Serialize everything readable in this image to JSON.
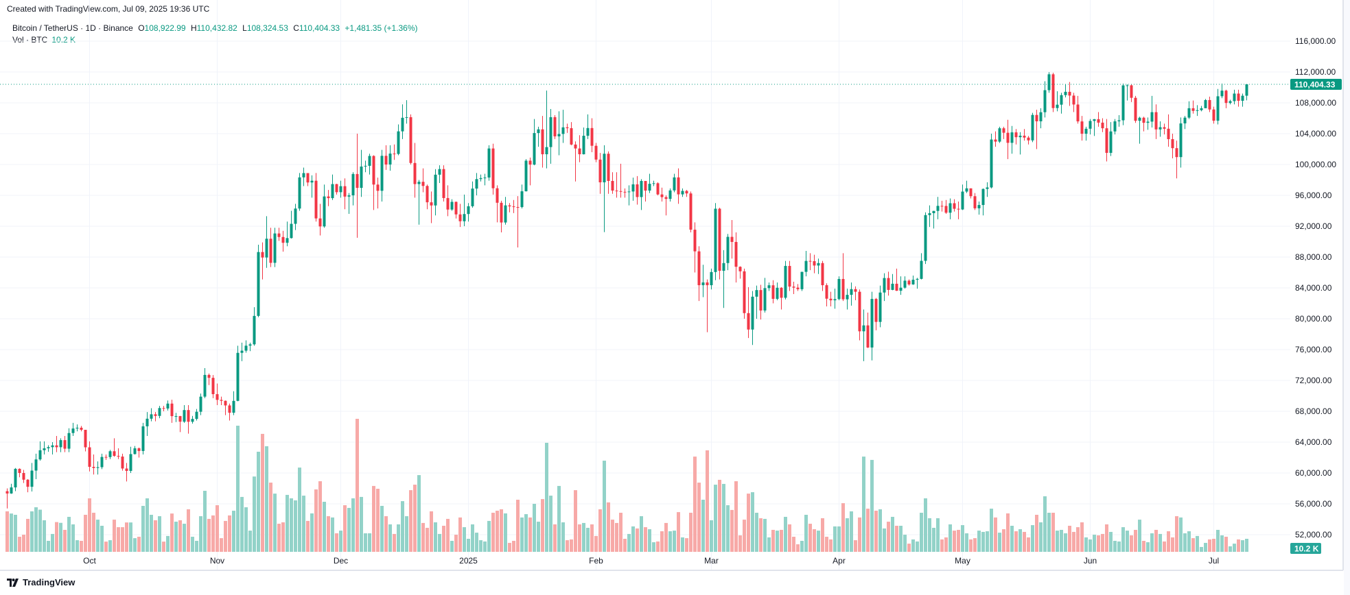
{
  "header": {
    "created_text": "Created with TradingView.com, Jul 09, 2025 19:36 UTC",
    "symbol": "Bitcoin / TetherUS · 1D · Binance",
    "o_label": "O",
    "o_value": "108,922.99",
    "h_label": "H",
    "h_value": "110,432.82",
    "l_label": "L",
    "l_value": "108,324.53",
    "c_label": "C",
    "c_value": "110,404.33",
    "change": "+1,481.35 (+1.36%)",
    "vol_label": "Vol · BTC",
    "vol_value": "10.2 K"
  },
  "badges": {
    "price": "110,404.33",
    "volume": "10.2 K"
  },
  "footer": {
    "brand": "TradingView"
  },
  "colors": {
    "up": "#089981",
    "down": "#F23645",
    "vol_up": "#92d2c8",
    "vol_down": "#f7a9a7",
    "grid": "#f0f3fa",
    "badge_vol": "#26a69a"
  },
  "chart_data": {
    "type": "candlestick",
    "symbol": "BTCUSDT",
    "interval": "1D",
    "first_date": "2024-09-11",
    "first_open": 57640,
    "last_price": 110404.33,
    "ylim": [
      50000,
      118000
    ],
    "y_ticks": [
      "116,000.00",
      "112,000.00",
      "108,000.00",
      "104,000.00",
      "100,000.00",
      "96,000.00",
      "92,000.00",
      "88,000.00",
      "84,000.00",
      "80,000.00",
      "76,000.00",
      "72,000.00",
      "68,000.00",
      "64,000.00",
      "60,000.00",
      "56,000.00",
      "52,000.00"
    ],
    "x_ticks": [
      {
        "label": "Oct",
        "date": "2024-10-01"
      },
      {
        "label": "Nov",
        "date": "2024-11-01"
      },
      {
        "label": "Dec",
        "date": "2024-12-01"
      },
      {
        "label": "2025",
        "date": "2025-01-01"
      },
      {
        "label": "Feb",
        "date": "2025-02-01"
      },
      {
        "label": "Mar",
        "date": "2025-03-01"
      },
      {
        "label": "Apr",
        "date": "2025-04-01"
      },
      {
        "label": "May",
        "date": "2025-05-01"
      },
      {
        "label": "Jun",
        "date": "2025-06-01"
      },
      {
        "label": "Jul",
        "date": "2025-07-01"
      }
    ],
    "grid": true,
    "close": [
      57340,
      58130,
      60540,
      60000,
      59130,
      58210,
      60310,
      61760,
      62950,
      63200,
      63350,
      63580,
      63340,
      64260,
      63150,
      65180,
      65770,
      65870,
      65600,
      63330,
      60800,
      60650,
      60750,
      62080,
      62060,
      62820,
      62220,
      62130,
      60580,
      60270,
      62450,
      63200,
      62850,
      66050,
      67040,
      67610,
      67400,
      68420,
      68360,
      69000,
      67370,
      67380,
      66650,
      68160,
      66640,
      67010,
      67940,
      69900,
      72720,
      72340,
      70220,
      69480,
      69360,
      68760,
      67810,
      69350,
      75580,
      75860,
      76510,
      76680,
      80370,
      88650,
      87940,
      90380,
      87250,
      91060,
      90600,
      89850,
      90460,
      92310,
      94290,
      98330,
      98890,
      97670,
      97900,
      93010,
      91970,
      95860,
      95640,
      97460,
      96410,
      97190,
      95840,
      96000,
      98770,
      96970,
      99740,
      99830,
      101110,
      97400,
      96590,
      101130,
      100000,
      101420,
      101370,
      104300,
      106060,
      106140,
      100200,
      97460,
      97760,
      97220,
      95100,
      94690,
      98680,
      99410,
      95650,
      94160,
      95160,
      93530,
      92640,
      93580,
      94590,
      96880,
      98110,
      98240,
      98310,
      102080,
      96920,
      95040,
      92480,
      94700,
      94570,
      94490,
      94480,
      96530,
      100500,
      99990,
      104080,
      104560,
      101330,
      102260,
      106140,
      103650,
      103960,
      104820,
      104710,
      102590,
      102080,
      101330,
      103730,
      104730,
      102430,
      100640,
      97690,
      101400,
      97870,
      96620,
      96550,
      96460,
      96450,
      96500,
      97430,
      95780,
      97870,
      96620,
      97500,
      97570,
      96120,
      95770,
      95540,
      96640,
      98330,
      96130,
      96580,
      96250,
      91550,
      88740,
      84350,
      84710,
      84350,
      86060,
      94270,
      86220,
      87220,
      90620,
      89960,
      86740,
      86150,
      80730,
      78600,
      82860,
      83720,
      81070,
      83970,
      84340,
      82580,
      84020,
      82720,
      86850,
      84170,
      84040,
      83830,
      86080,
      87500,
      87470,
      86900,
      87220,
      84350,
      82600,
      82390,
      82550,
      85160,
      82520,
      83100,
      83840,
      83500,
      78370,
      79140,
      76270,
      82570,
      79590,
      83400,
      85280,
      83740,
      84540,
      83630,
      84030,
      84940,
      84450,
      85060,
      85170,
      87510,
      93440,
      93690,
      93980,
      94640,
      94630,
      93750,
      94980,
      94260,
      94170,
      96490,
      96910,
      95890,
      94320,
      94750,
      96830,
      97030,
      103240,
      102970,
      104700,
      104120,
      102810,
      104170,
      103540,
      103740,
      103490,
      103130,
      106430,
      105600,
      106780,
      109640,
      111700,
      107320,
      107760,
      109000,
      109430,
      108940,
      107780,
      105590,
      103990,
      104640,
      105650,
      105880,
      105430,
      104700,
      101510,
      104290,
      105600,
      105730,
      110260,
      110270,
      108650,
      105670,
      106070,
      105410,
      105560,
      106790,
      104550,
      104840,
      104640,
      103290,
      102120,
      100960,
      105330,
      106080,
      107300,
      106950,
      107050,
      107300,
      108360,
      107140,
      105680,
      108850,
      109580,
      107980,
      108220,
      109200,
      108260,
      108922.99,
      110404.33
    ],
    "high": [
      58000,
      58600,
      60650,
      60600,
      60400,
      59200,
      61300,
      62500,
      64100,
      64100,
      63600,
      64000,
      64800,
      64500,
      64800,
      65800,
      66500,
      66300,
      66100,
      65600,
      64100,
      62400,
      61500,
      62500,
      62400,
      63000,
      64500,
      63200,
      62500,
      61300,
      63400,
      63500,
      63300,
      66500,
      67900,
      68400,
      67900,
      68700,
      68700,
      69400,
      69500,
      67800,
      67400,
      68800,
      68800,
      67400,
      68300,
      70300,
      73600,
      72900,
      72700,
      71600,
      69900,
      69400,
      69000,
      70600,
      76500,
      76900,
      77200,
      76900,
      81500,
      89600,
      89900,
      93300,
      91800,
      91800,
      91800,
      91400,
      92600,
      94000,
      94900,
      98900,
      99600,
      98800,
      98600,
      98900,
      94900,
      97400,
      96700,
      98700,
      97500,
      97900,
      98200,
      96300,
      99000,
      104000,
      101900,
      100500,
      101400,
      101200,
      98300,
      101900,
      102500,
      102500,
      102600,
      105200,
      107800,
      108350,
      106500,
      102800,
      98000,
      99500,
      97400,
      96500,
      99400,
      99900,
      99900,
      97300,
      95500,
      95200,
      94900,
      96100,
      95000,
      97800,
      98900,
      98700,
      98800,
      102500,
      102700,
      97300,
      95300,
      95800,
      95000,
      95400,
      95900,
      97400,
      100700,
      100900,
      105900,
      104900,
      106300,
      109590,
      107200,
      106400,
      106900,
      107100,
      105300,
      105500,
      103000,
      103800,
      104800,
      106500,
      106000,
      102800,
      101500,
      102500,
      101700,
      99000,
      99000,
      100100,
      96900,
      97300,
      98300,
      98500,
      98100,
      97800,
      98800,
      97900,
      97700,
      97000,
      96000,
      96900,
      98800,
      99500,
      96900,
      96700,
      96500,
      92500,
      89400,
      87000,
      85100,
      86500,
      95000,
      94400,
      88900,
      91000,
      92800,
      91200,
      86800,
      86500,
      84100,
      83600,
      84300,
      84400,
      85300,
      84700,
      85000,
      84700,
      84100,
      87500,
      87500,
      84800,
      84500,
      86100,
      88800,
      88500,
      88300,
      87800,
      87500,
      84600,
      83500,
      83900,
      85500,
      88500,
      83900,
      84700,
      84200,
      83800,
      81200,
      80800,
      83500,
      82700,
      84300,
      85900,
      86100,
      85800,
      86500,
      85500,
      85500,
      85100,
      85600,
      85300,
      88500,
      93800,
      94700,
      94000,
      95800,
      95300,
      95400,
      95600,
      95500,
      95200,
      97400,
      97900,
      96900,
      96300,
      95200,
      96900,
      97700,
      104000,
      104300,
      104900,
      104900,
      105800,
      105000,
      104600,
      104200,
      104600,
      103700,
      106700,
      107100,
      107300,
      110800,
      111980,
      111900,
      109500,
      109300,
      110400,
      110700,
      109300,
      108900,
      106300,
      104900,
      105900,
      105900,
      106800,
      106000,
      105900,
      105500,
      105900,
      106400,
      110500,
      110400,
      110400,
      108900,
      106200,
      106200,
      106100,
      108900,
      107800,
      105600,
      105300,
      106500,
      104000,
      103100,
      106100,
      106300,
      108200,
      108300,
      107700,
      107600,
      108500,
      108800,
      107500,
      109800,
      110500,
      109700,
      108400,
      109700,
      109700,
      109200,
      110432.82
    ],
    "low": [
      55400,
      57300,
      57650,
      59450,
      58700,
      57500,
      57600,
      59200,
      61600,
      62400,
      62750,
      62400,
      62700,
      62700,
      62700,
      62700,
      64800,
      65400,
      65400,
      62800,
      60200,
      59800,
      59800,
      60500,
      61700,
      61800,
      62100,
      61800,
      60300,
      58900,
      60000,
      62400,
      62000,
      62400,
      64800,
      66700,
      66700,
      67100,
      68000,
      68100,
      66500,
      66600,
      65300,
      66500,
      65100,
      66400,
      66800,
      67500,
      69700,
      71400,
      69700,
      68800,
      68800,
      67500,
      66800,
      67500,
      69300,
      74500,
      75600,
      75800,
      76500,
      80200,
      85100,
      86600,
      86700,
      86700,
      90100,
      88700,
      89400,
      90400,
      91500,
      94000,
      97200,
      97200,
      95700,
      92600,
      90800,
      91800,
      94600,
      95400,
      96100,
      95700,
      94200,
      93600,
      94700,
      90500,
      95800,
      99000,
      98700,
      94100,
      94300,
      95200,
      99300,
      99200,
      100600,
      101200,
      103300,
      105300,
      100000,
      95700,
      92200,
      96400,
      94200,
      92400,
      93400,
      97600,
      95200,
      93300,
      94000,
      93000,
      91900,
      92000,
      92600,
      94400,
      96000,
      97800,
      97300,
      97900,
      96100,
      92500,
      91200,
      92200,
      93800,
      93700,
      89250,
      94300,
      96500,
      97300,
      99900,
      102300,
      99600,
      99500,
      100100,
      103300,
      101200,
      102800,
      104100,
      102500,
      97800,
      100300,
      101300,
      103300,
      101600,
      100300,
      96200,
      91230,
      96200,
      96200,
      95700,
      95700,
      95700,
      94700,
      95300,
      94800,
      94100,
      95200,
      96300,
      97200,
      96000,
      95200,
      93400,
      95200,
      96400,
      94900,
      95800,
      95800,
      91200,
      86000,
      82300,
      82800,
      78260,
      83800,
      85000,
      85100,
      81400,
      86300,
      87800,
      84700,
      85200,
      80000,
      77500,
      76600,
      80000,
      79900,
      80800,
      83600,
      82000,
      82400,
      81200,
      82500,
      83600,
      83200,
      83600,
      83600,
      85500,
      86300,
      85900,
      85800,
      83600,
      81600,
      81600,
      81300,
      82400,
      82300,
      81200,
      81700,
      82400,
      77200,
      74500,
      76200,
      74600,
      78500,
      78900,
      82300,
      83000,
      83700,
      83600,
      83100,
      83900,
      84300,
      84400,
      83900,
      85100,
      87100,
      91900,
      91700,
      92900,
      93900,
      93600,
      92900,
      93900,
      92900,
      94100,
      96300,
      95600,
      94100,
      93500,
      93400,
      95800,
      96900,
      102300,
      102800,
      103300,
      100700,
      101400,
      102600,
      101300,
      103100,
      102600,
      102900,
      102000,
      104700,
      106100,
      109300,
      106800,
      106900,
      106600,
      108700,
      107600,
      106800,
      105300,
      103100,
      103100,
      103900,
      103700,
      104900,
      104200,
      100400,
      101100,
      103900,
      104900,
      105100,
      108300,
      108100,
      105400,
      102700,
      104300,
      104500,
      104800,
      103300,
      103600,
      103900,
      102300,
      100800,
      98200,
      99600,
      104600,
      105900,
      106600,
      106300,
      106900,
      107300,
      106800,
      105300,
      105200,
      108600,
      107300,
      107800,
      107800,
      107500,
      107500,
      108324.53
    ],
    "volume_unit": "K BTC",
    "volume": [
      31.7,
      30,
      29,
      11.8,
      13.4,
      25.8,
      31.7,
      34.9,
      33,
      24.7,
      8.6,
      14,
      23.3,
      22.7,
      17.2,
      27.4,
      21.5,
      9.1,
      8.6,
      29,
      41.9,
      30.6,
      25.2,
      20.4,
      8,
      9.1,
      25.2,
      19.3,
      19.3,
      23,
      23,
      10.7,
      11.8,
      36,
      41.9,
      29,
      24.7,
      27.9,
      8,
      12.4,
      30,
      23.6,
      24.7,
      22,
      33.3,
      11.8,
      8.6,
      27.9,
      47.8,
      25.8,
      28.5,
      36.5,
      10.7,
      24.2,
      28.5,
      32.2,
      98.8,
      43,
      34.9,
      16.6,
      59,
      78.4,
      92.4,
      82.7,
      54.2,
      45.6,
      22,
      23.1,
      44.6,
      41.9,
      40.3,
      66,
      44,
      24.2,
      30.1,
      48.9,
      55.3,
      39.2,
      27.9,
      26.9,
      14.5,
      16.6,
      36.5,
      34.4,
      41.9,
      104.2,
      43,
      14.5,
      14.5,
      51.6,
      49.4,
      36,
      27.9,
      21.5,
      14,
      21.5,
      39.7,
      27.9,
      48.3,
      52.6,
      60.1,
      22.6,
      18.8,
      31.7,
      23.1,
      14,
      20.4,
      25.8,
      8.6,
      13.4,
      26.9,
      19.3,
      10.2,
      21.5,
      15,
      9.1,
      8.1,
      24.2,
      30.6,
      32.2,
      33.3,
      30.1,
      7,
      8.6,
      40.8,
      26.9,
      29.5,
      26.9,
      37.6,
      23.6,
      41.3,
      85.4,
      44,
      21.5,
      51.6,
      23.1,
      9.1,
      9.7,
      48.3,
      21.5,
      22.6,
      18.8,
      21.5,
      12.4,
      33.3,
      71.4,
      38.7,
      25.2,
      22.6,
      30.6,
      10.2,
      14,
      19.9,
      18.3,
      27.9,
      19.3,
      17.7,
      7.5,
      8.1,
      16.1,
      22.6,
      16.1,
      16.6,
      31.1,
      11.3,
      10.7,
      30.6,
      74.6,
      54.2,
      40.8,
      79.5,
      24.7,
      52.6,
      56.4,
      53.2,
      36.5,
      32.8,
      55.3,
      12.9,
      25.2,
      45.6,
      46.7,
      30.6,
      26.3,
      25.8,
      11.3,
      17.2,
      16.6,
      17.2,
      27.4,
      21.5,
      11.8,
      5.9,
      8.6,
      29,
      22,
      17.7,
      16.6,
      26.3,
      11.8,
      9.7,
      19.9,
      19.9,
      38.1,
      26.3,
      31.7,
      9.1,
      26.9,
      74.6,
      33.8,
      72,
      32.2,
      33.3,
      18.3,
      23.6,
      27.4,
      20.4,
      20.4,
      13.4,
      6.4,
      9.7,
      8.1,
      30.6,
      41.9,
      26.3,
      18.8,
      26.3,
      9.7,
      11.3,
      21.5,
      16.6,
      17.2,
      20.9,
      14.5,
      9.7,
      10.7,
      16.6,
      15.6,
      16.1,
      33.8,
      26.9,
      15,
      17.7,
      30.1,
      20.4,
      16.1,
      17.7,
      15.6,
      11.3,
      20.9,
      29,
      23.1,
      43.5,
      30.6,
      30.6,
      16.6,
      17.2,
      14.5,
      20.4,
      15.6,
      19.3,
      23.1,
      11.3,
      9.7,
      13.4,
      12.9,
      14,
      21.5,
      15.6,
      8.6,
      8.1,
      19.3,
      16.6,
      12.9,
      17.2,
      25.2,
      8.6,
      7.5,
      14.5,
      17.2,
      14,
      8.1,
      16.1,
      11.3,
      27.9,
      26.9,
      14.5,
      16.1,
      10.7,
      12.4,
      3.8,
      7,
      9.7,
      10.2,
      17.2,
      12.9,
      11.8,
      4.3,
      6.4,
      9.7,
      9.1,
      10.2
    ]
  }
}
